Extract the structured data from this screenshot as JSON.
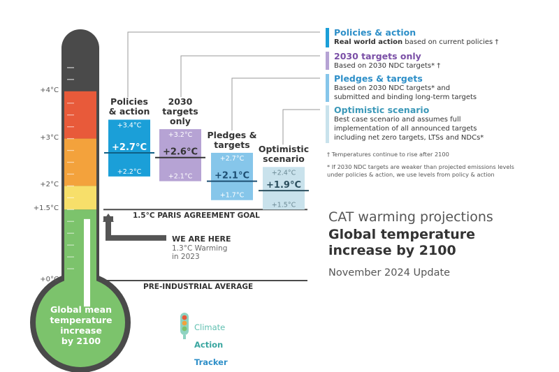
{
  "colors": {
    "policies": "#1b9fd8",
    "ndc2030": "#b6a3d4",
    "pledges": "#86c6ea",
    "optimistic": "#c9e2ec",
    "optimistic_text": "#3a6f84",
    "thermo_red": "#e85a3a",
    "thermo_orange": "#f3a23c",
    "thermo_yellow": "#f7df6a",
    "thermo_green": "#7cc36c",
    "thermo_dark": "#4a4a4a",
    "title_purple": "#7a4fa6",
    "title_blue": "#2e8fc8",
    "title_teal": "#3b98b8"
  },
  "thermometer": {
    "bubble_text": "Global mean\ntemperature\nincrease\nby 2100",
    "fill_level": 1.3
  },
  "chart_data": {
    "type": "bar",
    "title": "CAT warming projections",
    "subtitle": "Global temperature increase by 2100",
    "ylabel": "",
    "ylim": [
      0,
      5
    ],
    "y_ticks": [
      {
        "value": 4,
        "label": "+4°C"
      },
      {
        "value": 3,
        "label": "+3°C"
      },
      {
        "value": 2,
        "label": "+2°C"
      },
      {
        "value": 1.5,
        "label": "+1.5°C"
      },
      {
        "value": 0,
        "label": "+0°C"
      }
    ],
    "categories": [
      "Policies & action",
      "2030 targets only",
      "Pledges & targets",
      "Optimistic scenario"
    ],
    "series": [
      {
        "key": "policies",
        "label": "Policies\n& action",
        "low": 2.2,
        "central": 2.7,
        "high": 3.4,
        "low_label": "+2.2°C",
        "central_label": "+2.7°C",
        "high_label": "+3.4°C"
      },
      {
        "key": "ndc2030",
        "label": "2030\ntargets\nonly",
        "low": 2.1,
        "central": 2.6,
        "high": 3.2,
        "low_label": "+2.1°C",
        "central_label": "+2.6°C",
        "high_label": "+3.2°C"
      },
      {
        "key": "pledges",
        "label": "Pledges &\ntargets",
        "low": 1.7,
        "central": 2.1,
        "high": 2.7,
        "low_label": "+1.7°C",
        "central_label": "+2.1°C",
        "high_label": "+2.7°C"
      },
      {
        "key": "optimistic",
        "label": "Optimistic\nscenario",
        "low": 1.5,
        "central": 1.9,
        "high": 2.4,
        "low_label": "+1.5°C",
        "central_label": "+1.9°C",
        "high_label": "+2.4°C"
      }
    ],
    "reference_lines": [
      {
        "value": 1.5,
        "label": "1.5°C PARIS AGREEMENT GOAL"
      },
      {
        "value": 0,
        "label": "PRE-INDUSTRIAL AVERAGE"
      }
    ],
    "annotation": {
      "value": 1.3,
      "title": "WE ARE HERE",
      "text": "1.3°C Warming\nin 2023"
    }
  },
  "legend": [
    {
      "key": "policies",
      "title": "Policies & action",
      "bold": "Real world action",
      "desc": " based on current policies †"
    },
    {
      "key": "ndc2030",
      "title": "2030 targets only",
      "bold": "",
      "desc": "Based on 2030 NDC targets* †"
    },
    {
      "key": "pledges",
      "title": "Pledges & targets",
      "bold": "",
      "desc": "Based on 2030 NDC targets* and\nsubmitted and binding long-term targets"
    },
    {
      "key": "optimistic",
      "title": "Optimistic scenario",
      "bold": "",
      "desc": "Best case scenario and assumes full\nimplementation of all announced targets\nincluding net zero targets, LTSs and NDCs*"
    }
  ],
  "notes": {
    "dagger": "†  Temperatures continue to rise after 2100",
    "star": "*  If 2030 NDC targets are weaker than projected emissions levels\n    under policies & action, we use levels from policy & action"
  },
  "right_panel": {
    "title": "CAT warming projections",
    "subtitle_line1": "Global temperature",
    "subtitle_line2": "increase by 2100",
    "update": "November 2024 Update"
  },
  "logo": {
    "line1": "Climate",
    "line2": "Action",
    "line3": "Tracker"
  }
}
